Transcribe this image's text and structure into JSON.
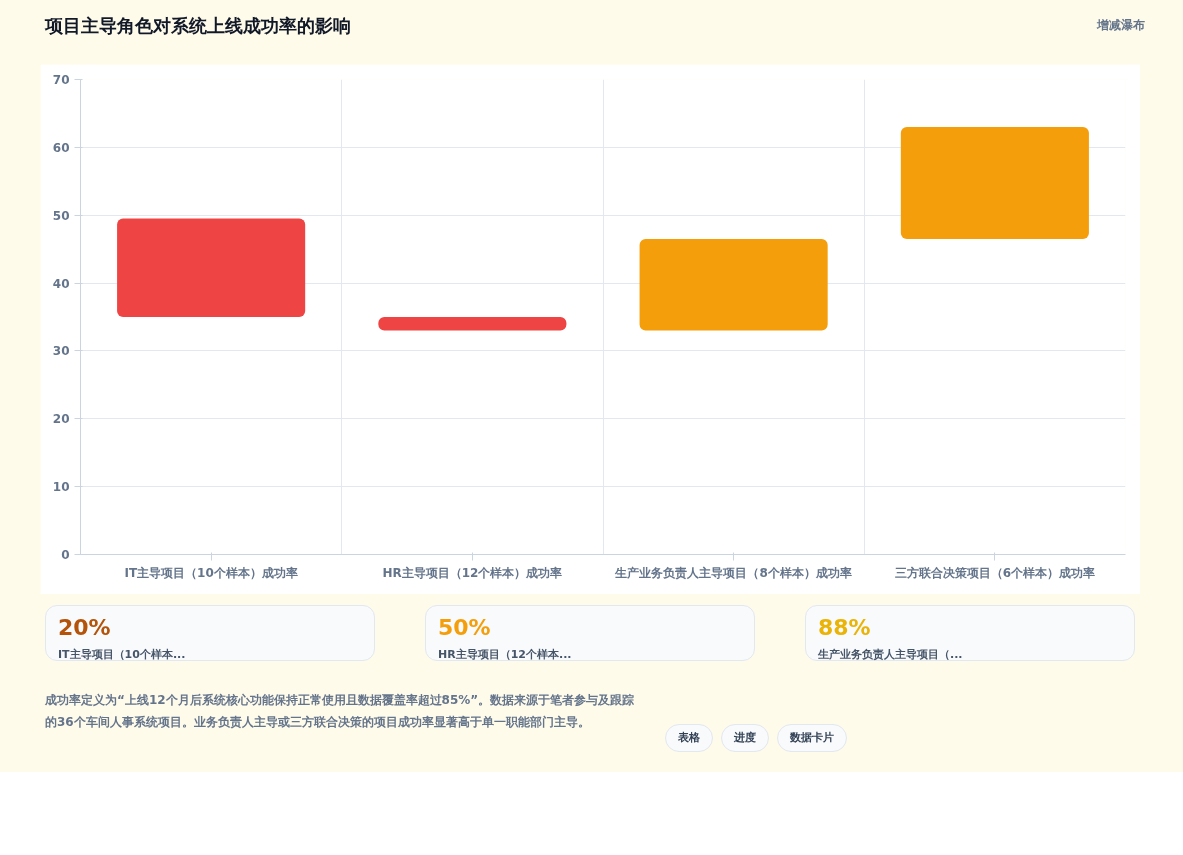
{
  "chart_data": [
    {
      "type": "bar",
      "title": "项目主导角色对系统上线成功率的影响",
      "subtitle": "增减瀑布",
      "categories": [
        "IT主导项目（10个样本）成功率",
        "HR主导项目（12个样本）成功率",
        "生产业务负责人主导项目（8个样本）成功率",
        "三方联合决策项目（6个样本）成功率"
      ],
      "base": [
        35,
        33,
        33,
        46.5
      ],
      "values": [
        14.5,
        2,
        13.5,
        16.5
      ],
      "colors": [
        "#ef4444",
        "#ef4444",
        "#f59e0b",
        "#f59e0b"
      ],
      "ylim": [
        0,
        70
      ],
      "yticks": [
        0,
        10,
        20,
        30,
        40,
        50,
        60,
        70
      ],
      "grid": true,
      "annotations": [
        "成功率定义为“上线12个月后系统核心功能保持正常使用且数据覆盖率超过85%”。数据来源于笔者参与及跟踪的36个车间人事系统项目。业务负责人主导或三方联合决策的项目成功率显著高于单一职能部门主导。",
        "表格",
        "进度",
        "数据卡片"
      ]
    },
    {
      "type": "other",
      "colors": [
        "#b45309",
        "#f59e0b",
        "#eab308"
      ],
      "annotations": [
        "20%",
        "IT主导项目（10个样本...",
        "50%",
        "HR主导项目（12个样本...",
        "88%",
        "生产业务负责人主导项目（..."
      ]
    }
  ]
}
